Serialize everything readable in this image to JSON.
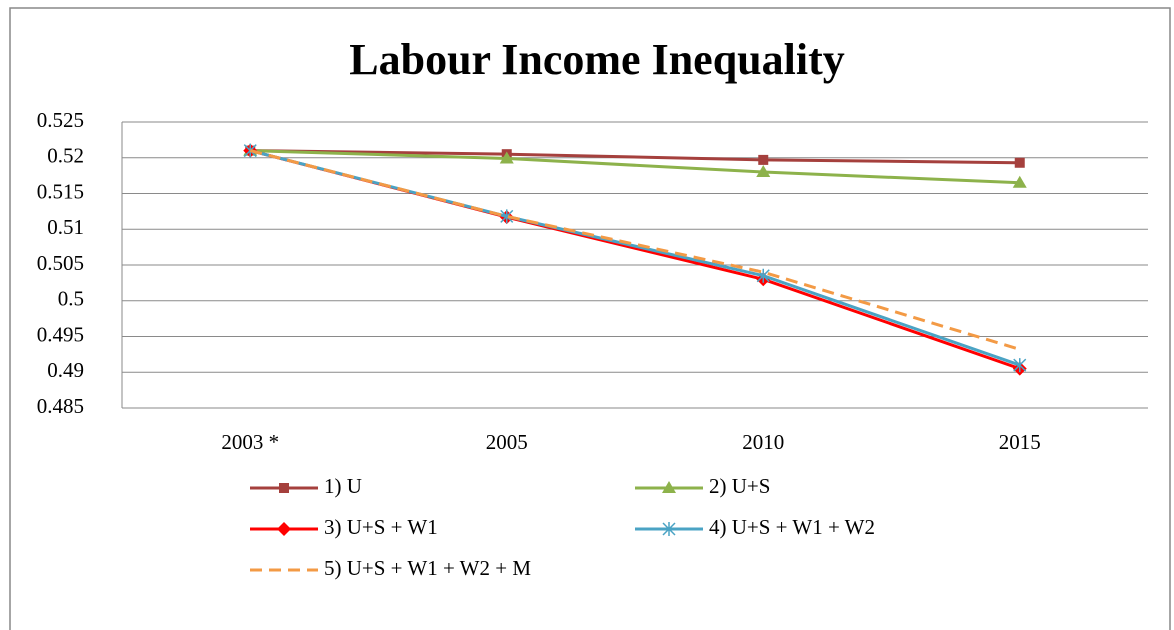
{
  "chart_data": {
    "type": "line",
    "title": "Labour Income Inequality",
    "categories": [
      "2003 *",
      "2005",
      "2010",
      "2015"
    ],
    "series": [
      {
        "name": "1) U",
        "color": "#a5403d",
        "marker": "square",
        "values": [
          0.521,
          0.5205,
          0.5197,
          0.5193
        ]
      },
      {
        "name": "2) U+S",
        "color": "#8db24b",
        "marker": "triangle",
        "values": [
          0.521,
          0.5199,
          0.518,
          0.5165
        ]
      },
      {
        "name": "3) U+S + W1",
        "color": "#ff0000",
        "marker": "diamond",
        "values": [
          0.521,
          0.5117,
          0.503,
          0.4905
        ]
      },
      {
        "name": "4) U+S + W1 + W2",
        "color": "#4aa3c4",
        "marker": "star",
        "values": [
          0.521,
          0.5118,
          0.5035,
          0.491
        ]
      },
      {
        "name": "5) U+S + W1 + W2 + M",
        "color": "#f39a45",
        "marker": "none",
        "dashed": true,
        "values": [
          0.521,
          0.5118,
          0.504,
          0.4932
        ]
      }
    ],
    "ylim": [
      0.485,
      0.525
    ],
    "yticks": [
      0.485,
      0.49,
      0.495,
      0.5,
      0.505,
      0.51,
      0.515,
      0.52,
      0.525
    ],
    "grid": true,
    "legend": "bottom"
  }
}
